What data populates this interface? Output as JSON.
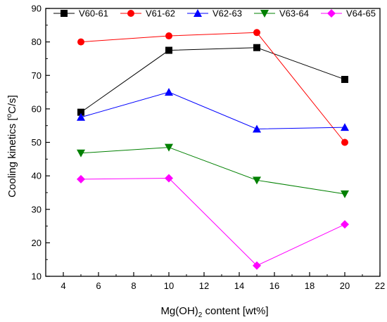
{
  "chart_data": {
    "type": "line",
    "title": "",
    "xlabel_parts": [
      "Mg(OH)",
      "2",
      " content [wt%]"
    ],
    "ylabel_parts": [
      "Cooling kinetics [",
      "o",
      "C/s]"
    ],
    "x_ticks": [
      4,
      6,
      8,
      10,
      12,
      14,
      16,
      18,
      20,
      22
    ],
    "y_ticks": [
      10,
      20,
      30,
      40,
      50,
      60,
      70,
      80,
      90
    ],
    "xlim": [
      3,
      22
    ],
    "ylim": [
      10,
      90
    ],
    "grid": false,
    "legend_position": "top",
    "x": [
      5,
      10,
      15,
      20
    ],
    "series": [
      {
        "name": "V60-61",
        "values": [
          59.0,
          77.5,
          78.3,
          68.8
        ],
        "color": "#000000",
        "marker": "square"
      },
      {
        "name": "V61-62",
        "values": [
          80.0,
          81.8,
          82.8,
          50.0
        ],
        "color": "#ff0000",
        "marker": "circle"
      },
      {
        "name": "V62-63",
        "values": [
          57.5,
          65.0,
          54.0,
          54.5
        ],
        "color": "#0000ff",
        "marker": "triangle-up"
      },
      {
        "name": "V63-64",
        "values": [
          46.8,
          48.5,
          38.7,
          34.6
        ],
        "color": "#008000",
        "marker": "triangle-down"
      },
      {
        "name": "V64-65",
        "values": [
          39.0,
          39.3,
          13.2,
          25.5
        ],
        "color": "#ff00ff",
        "marker": "diamond"
      }
    ]
  }
}
